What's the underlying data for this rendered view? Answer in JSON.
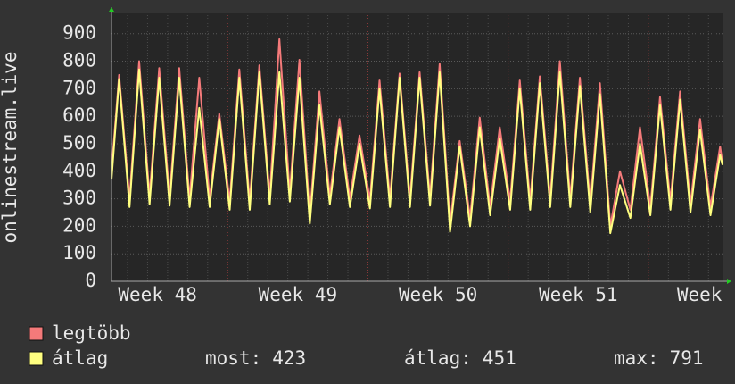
{
  "chart_data": {
    "type": "line",
    "y_axis_label": "onlinestream.live",
    "xlim": [
      1.2,
      31.7
    ],
    "ylim": [
      0,
      977
    ],
    "yticks": [
      0,
      100,
      200,
      300,
      400,
      500,
      600,
      700,
      800,
      900
    ],
    "xticks": [
      {
        "value": 3.5,
        "label": "Week 48"
      },
      {
        "value": 10.5,
        "label": "Week 49"
      },
      {
        "value": 17.5,
        "label": "Week 50"
      },
      {
        "value": 24.5,
        "label": "Week 51"
      },
      {
        "value": 30.55,
        "label": "Week"
      }
    ],
    "x_major_grid": [
      7,
      14,
      21,
      28
    ],
    "x_minor_grid": [
      2,
      3,
      4,
      5,
      6,
      8,
      9,
      10,
      11,
      12,
      13,
      15,
      16,
      17,
      18,
      19,
      20,
      22,
      23,
      24,
      25,
      26,
      27,
      29,
      30,
      31
    ],
    "grid": true,
    "x": [
      1.2,
      1.58,
      2.1,
      2.58,
      3.1,
      3.58,
      4.1,
      4.58,
      5.1,
      5.58,
      6.1,
      6.58,
      7.1,
      7.58,
      8.1,
      8.58,
      9.1,
      9.58,
      10.1,
      10.58,
      11.1,
      11.58,
      12.1,
      12.58,
      13.1,
      13.58,
      14.1,
      14.58,
      15.1,
      15.58,
      16.1,
      16.58,
      17.1,
      17.58,
      18.1,
      18.58,
      19.1,
      19.58,
      20.1,
      20.58,
      21.1,
      21.58,
      22.1,
      22.58,
      23.1,
      23.58,
      24.1,
      24.58,
      25.1,
      25.58,
      26.1,
      26.58,
      27.1,
      27.58,
      28.1,
      28.58,
      29.1,
      29.58,
      30.1,
      30.58,
      31.1,
      31.58,
      31.7
    ],
    "series": [
      {
        "name": "legtöbb",
        "color": "#f47a7a",
        "values": [
          400,
          750,
          300,
          800,
          310,
          775,
          305,
          775,
          300,
          740,
          300,
          610,
          290,
          770,
          290,
          785,
          310,
          880,
          320,
          805,
          240,
          690,
          310,
          590,
          300,
          530,
          295,
          730,
          300,
          755,
          300,
          760,
          305,
          790,
          210,
          510,
          230,
          595,
          270,
          560,
          290,
          730,
          290,
          745,
          300,
          800,
          300,
          740,
          280,
          720,
          200,
          400,
          260,
          560,
          270,
          670,
          290,
          690,
          280,
          590,
          270,
          490,
          430
        ]
      },
      {
        "name": "átlag",
        "color": "#ffff80",
        "values": [
          370,
          735,
          270,
          770,
          280,
          740,
          275,
          740,
          270,
          630,
          270,
          590,
          260,
          740,
          260,
          760,
          280,
          760,
          290,
          740,
          210,
          640,
          280,
          560,
          270,
          500,
          265,
          700,
          270,
          740,
          270,
          740,
          275,
          760,
          180,
          490,
          200,
          560,
          240,
          520,
          260,
          700,
          260,
          720,
          270,
          760,
          270,
          710,
          250,
          680,
          175,
          350,
          230,
          500,
          240,
          640,
          260,
          660,
          250,
          550,
          240,
          460,
          423
        ]
      }
    ],
    "stats": [
      {
        "label": "most:",
        "value": 423
      },
      {
        "label": "átlag:",
        "value": 451
      },
      {
        "label": "max:",
        "value": 791
      }
    ]
  }
}
